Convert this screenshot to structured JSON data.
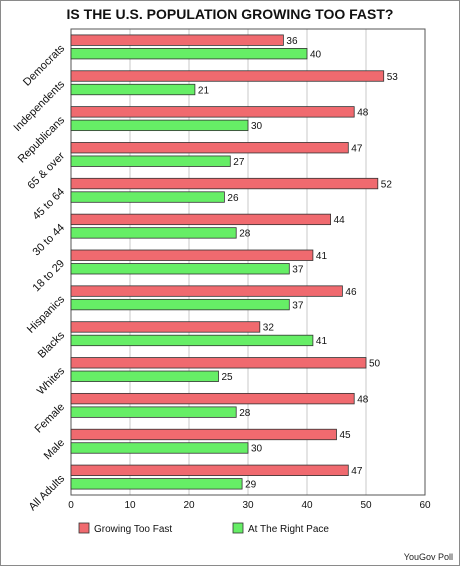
{
  "chart_data": {
    "type": "bar",
    "orientation": "horizontal",
    "title": "IS THE U.S. POPULATION GROWING TOO FAST?",
    "categories": [
      "Democrats",
      "Independents",
      "Republicans",
      "65 & over",
      "45 to 64",
      "30 to 44",
      "18 to 29",
      "Hispanics",
      "Blacks",
      "Whites",
      "Female",
      "Male",
      "All Adults"
    ],
    "series": [
      {
        "name": "Growing Too Fast",
        "color": "#f06a6f",
        "values": [
          36,
          53,
          48,
          47,
          52,
          44,
          41,
          46,
          32,
          50,
          48,
          45,
          47
        ]
      },
      {
        "name": "At The Right Pace",
        "color": "#66ee66",
        "values": [
          40,
          21,
          30,
          27,
          26,
          28,
          37,
          37,
          41,
          25,
          28,
          30,
          29
        ]
      }
    ],
    "xlim": [
      0,
      60
    ],
    "xticks": [
      0,
      10,
      20,
      30,
      40,
      50,
      60
    ],
    "grid": true,
    "legend_position": "bottom",
    "source": "YouGov Poll"
  }
}
